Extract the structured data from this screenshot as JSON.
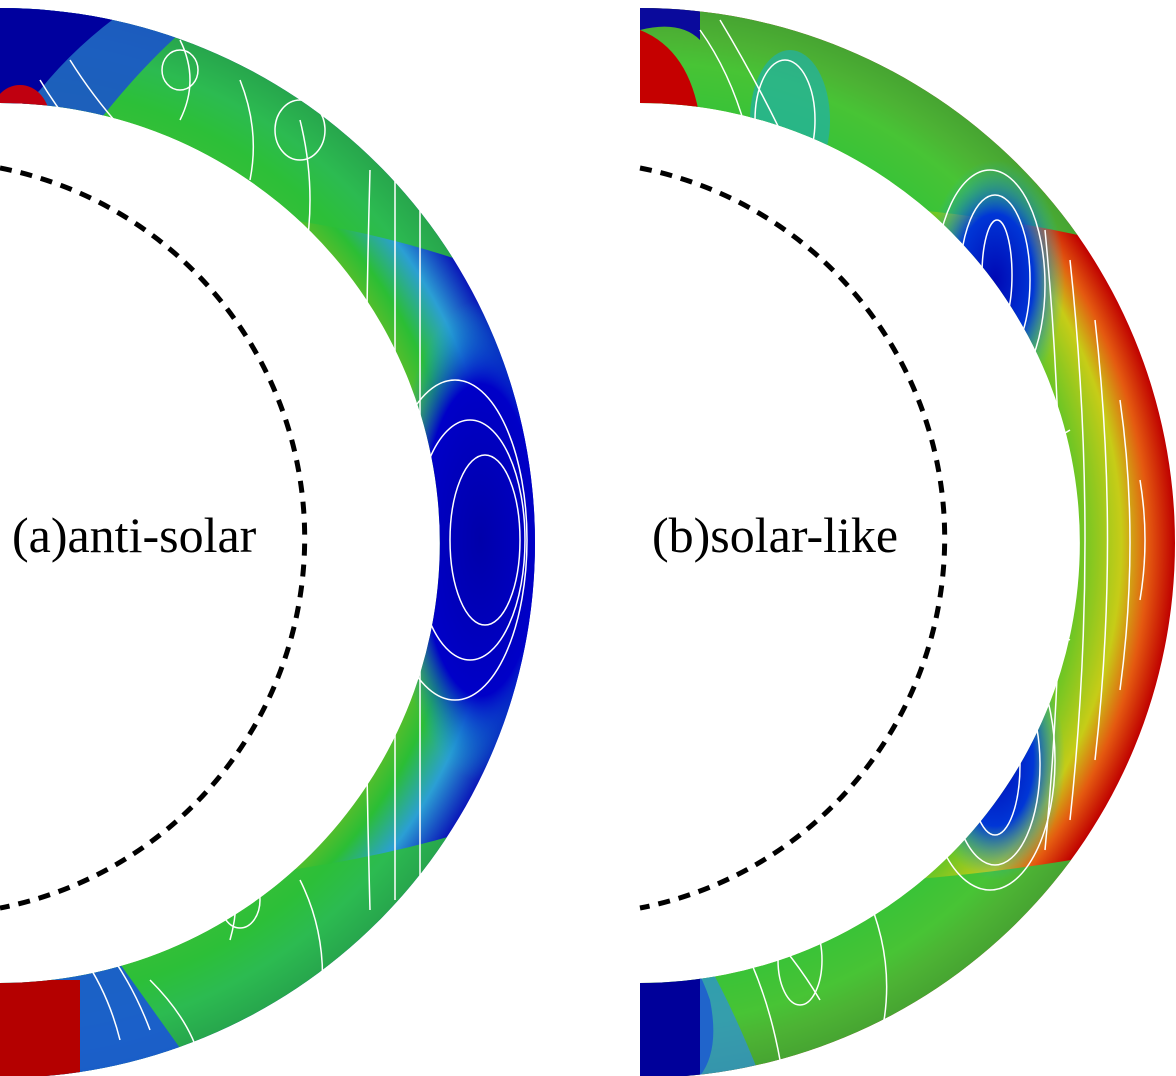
{
  "panels": [
    {
      "id": "a",
      "label": "(a)anti-solar",
      "color_field": {
        "pole_north": "#00009e",
        "midlatitude_band": "#2cc22c",
        "inner_equatorial_band": "#d8781c",
        "outer_equatorial_cell": "#0000b0",
        "pole_south": "#b40000"
      }
    },
    {
      "id": "b",
      "label": "(b)solar-like",
      "color_field": {
        "pole_north": "#0a0a9c",
        "midlatitude_band": "#2fc12f",
        "high_latitude_cells": "#1428c0",
        "outer_equatorial_band": "#c40a0a",
        "inner_equatorial_spot": "#d7a21a",
        "pole_south": "#00009a"
      }
    }
  ],
  "colormap": {
    "stops": [
      "#00008f",
      "#0044ff",
      "#00c8ff",
      "#33cc33",
      "#ffd100",
      "#ff7a00",
      "#b40000"
    ]
  },
  "contour_color": "#ffffff",
  "dashed_line_color": "#000000"
}
